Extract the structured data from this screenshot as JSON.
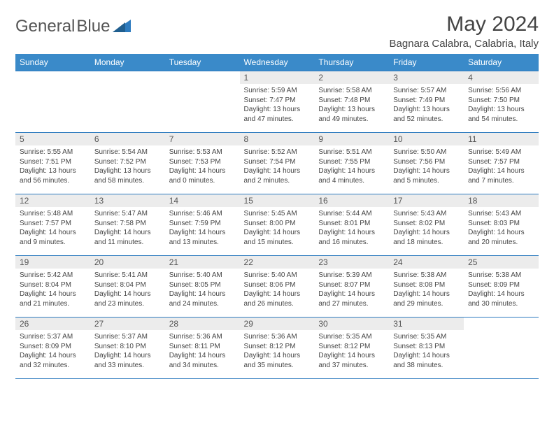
{
  "logo": {
    "text_general": "General",
    "text_blue": "Blue"
  },
  "title": "May 2024",
  "location": "Bagnara Calabra, Calabria, Italy",
  "colors": {
    "header_bg": "#3a8ac9",
    "header_text": "#ffffff",
    "daynum_bg": "#ececec",
    "border": "#2d7bbf",
    "logo_gray": "#555555",
    "logo_blue": "#2d7bbf"
  },
  "day_headers": [
    "Sunday",
    "Monday",
    "Tuesday",
    "Wednesday",
    "Thursday",
    "Friday",
    "Saturday"
  ],
  "weeks": [
    [
      null,
      null,
      null,
      {
        "n": "1",
        "sr": "5:59 AM",
        "ss": "7:47 PM",
        "dh": "13",
        "dm": "47"
      },
      {
        "n": "2",
        "sr": "5:58 AM",
        "ss": "7:48 PM",
        "dh": "13",
        "dm": "49"
      },
      {
        "n": "3",
        "sr": "5:57 AM",
        "ss": "7:49 PM",
        "dh": "13",
        "dm": "52"
      },
      {
        "n": "4",
        "sr": "5:56 AM",
        "ss": "7:50 PM",
        "dh": "13",
        "dm": "54"
      }
    ],
    [
      {
        "n": "5",
        "sr": "5:55 AM",
        "ss": "7:51 PM",
        "dh": "13",
        "dm": "56"
      },
      {
        "n": "6",
        "sr": "5:54 AM",
        "ss": "7:52 PM",
        "dh": "13",
        "dm": "58"
      },
      {
        "n": "7",
        "sr": "5:53 AM",
        "ss": "7:53 PM",
        "dh": "14",
        "dm": "0"
      },
      {
        "n": "8",
        "sr": "5:52 AM",
        "ss": "7:54 PM",
        "dh": "14",
        "dm": "2"
      },
      {
        "n": "9",
        "sr": "5:51 AM",
        "ss": "7:55 PM",
        "dh": "14",
        "dm": "4"
      },
      {
        "n": "10",
        "sr": "5:50 AM",
        "ss": "7:56 PM",
        "dh": "14",
        "dm": "5"
      },
      {
        "n": "11",
        "sr": "5:49 AM",
        "ss": "7:57 PM",
        "dh": "14",
        "dm": "7"
      }
    ],
    [
      {
        "n": "12",
        "sr": "5:48 AM",
        "ss": "7:57 PM",
        "dh": "14",
        "dm": "9"
      },
      {
        "n": "13",
        "sr": "5:47 AM",
        "ss": "7:58 PM",
        "dh": "14",
        "dm": "11"
      },
      {
        "n": "14",
        "sr": "5:46 AM",
        "ss": "7:59 PM",
        "dh": "14",
        "dm": "13"
      },
      {
        "n": "15",
        "sr": "5:45 AM",
        "ss": "8:00 PM",
        "dh": "14",
        "dm": "15"
      },
      {
        "n": "16",
        "sr": "5:44 AM",
        "ss": "8:01 PM",
        "dh": "14",
        "dm": "16"
      },
      {
        "n": "17",
        "sr": "5:43 AM",
        "ss": "8:02 PM",
        "dh": "14",
        "dm": "18"
      },
      {
        "n": "18",
        "sr": "5:43 AM",
        "ss": "8:03 PM",
        "dh": "14",
        "dm": "20"
      }
    ],
    [
      {
        "n": "19",
        "sr": "5:42 AM",
        "ss": "8:04 PM",
        "dh": "14",
        "dm": "21"
      },
      {
        "n": "20",
        "sr": "5:41 AM",
        "ss": "8:04 PM",
        "dh": "14",
        "dm": "23"
      },
      {
        "n": "21",
        "sr": "5:40 AM",
        "ss": "8:05 PM",
        "dh": "14",
        "dm": "24"
      },
      {
        "n": "22",
        "sr": "5:40 AM",
        "ss": "8:06 PM",
        "dh": "14",
        "dm": "26"
      },
      {
        "n": "23",
        "sr": "5:39 AM",
        "ss": "8:07 PM",
        "dh": "14",
        "dm": "27"
      },
      {
        "n": "24",
        "sr": "5:38 AM",
        "ss": "8:08 PM",
        "dh": "14",
        "dm": "29"
      },
      {
        "n": "25",
        "sr": "5:38 AM",
        "ss": "8:09 PM",
        "dh": "14",
        "dm": "30"
      }
    ],
    [
      {
        "n": "26",
        "sr": "5:37 AM",
        "ss": "8:09 PM",
        "dh": "14",
        "dm": "32"
      },
      {
        "n": "27",
        "sr": "5:37 AM",
        "ss": "8:10 PM",
        "dh": "14",
        "dm": "33"
      },
      {
        "n": "28",
        "sr": "5:36 AM",
        "ss": "8:11 PM",
        "dh": "14",
        "dm": "34"
      },
      {
        "n": "29",
        "sr": "5:36 AM",
        "ss": "8:12 PM",
        "dh": "14",
        "dm": "35"
      },
      {
        "n": "30",
        "sr": "5:35 AM",
        "ss": "8:12 PM",
        "dh": "14",
        "dm": "37"
      },
      {
        "n": "31",
        "sr": "5:35 AM",
        "ss": "8:13 PM",
        "dh": "14",
        "dm": "38"
      },
      null
    ]
  ]
}
